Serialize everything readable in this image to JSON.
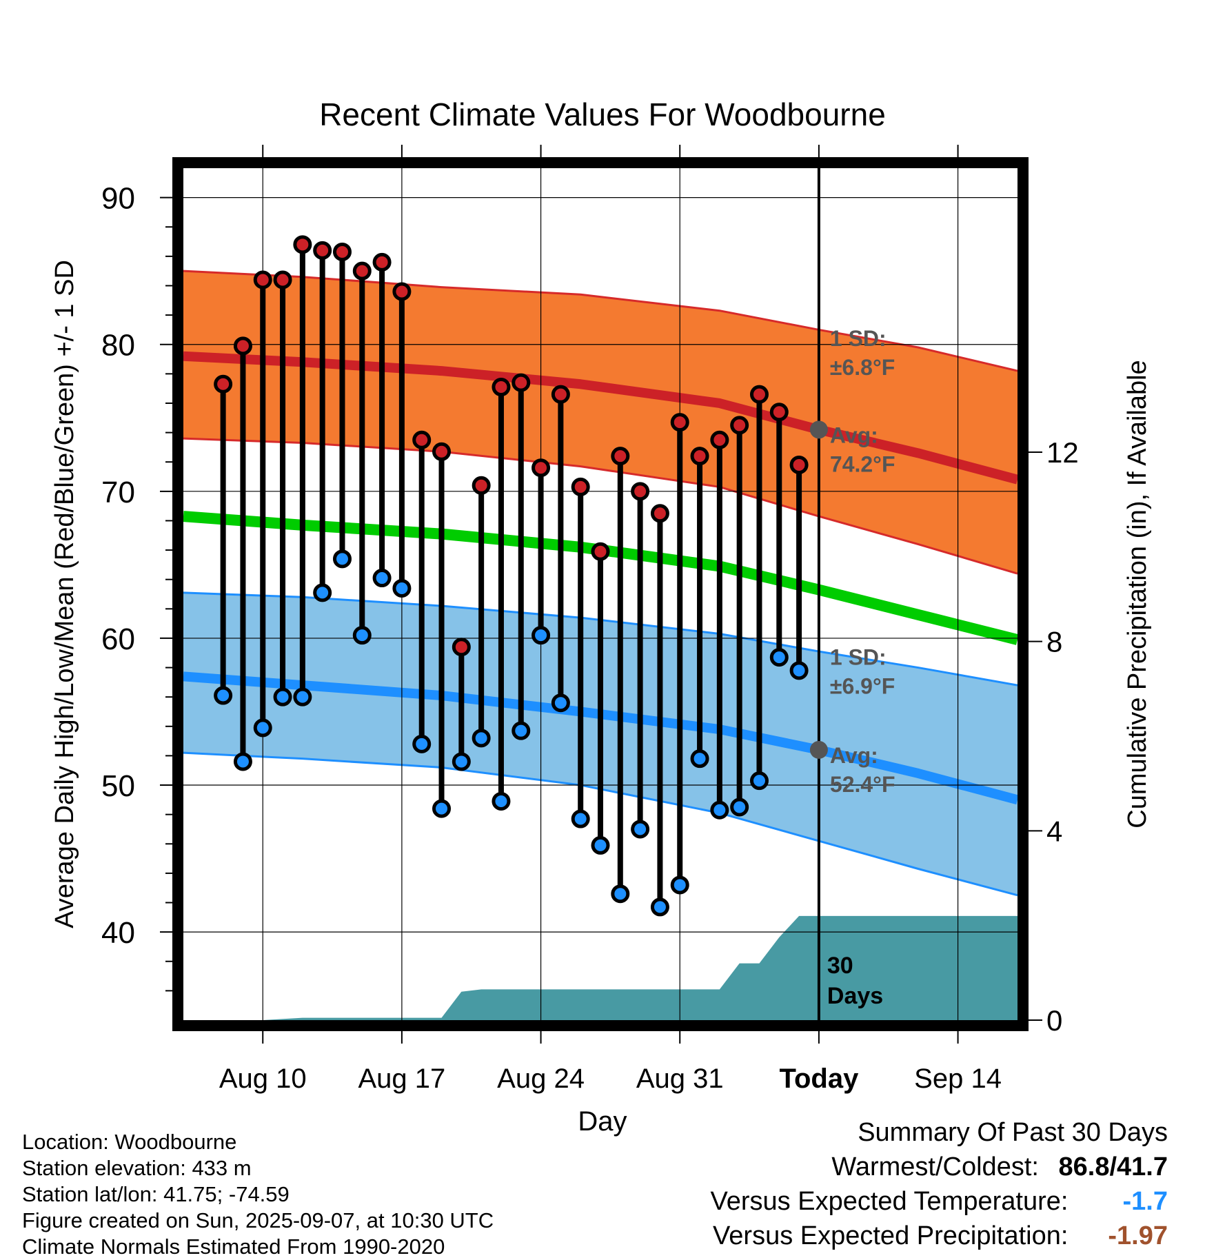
{
  "colors": {
    "high_marker": "#cc2127",
    "low_marker": "#1e90ff",
    "high_band": "#f47a30",
    "high_band_edge": "#d62a2a",
    "high_mean": "#cc2127",
    "low_band": "#86c2e8",
    "low_band_edge": "#1e8fff",
    "low_mean": "#1e8fff",
    "mean_line": "#00cc00",
    "precip_fill": "#489aa3",
    "annotation": "#555555",
    "temp_anomaly": "#1e8fff",
    "precip_anomaly": "#a0522d"
  },
  "chart_data": {
    "type": "line",
    "title": "Recent Climate Values For Woodbourne",
    "xlabel": "Day",
    "ylabel": "Average Daily High/Low/Mean (Red/Blue/Green) +/- 1 SD",
    "y2label": "Cumulative Precipitation (in), If Available",
    "ylim": [
      34,
      92
    ],
    "y2lim": [
      0,
      18
    ],
    "xlim": [
      "2025-08-06",
      "2025-09-17"
    ],
    "x_ticks": [
      {
        "date": "2025-08-10",
        "label": "Aug 10"
      },
      {
        "date": "2025-08-17",
        "label": "Aug 17"
      },
      {
        "date": "2025-08-24",
        "label": "Aug 24"
      },
      {
        "date": "2025-08-31",
        "label": "Aug 31"
      },
      {
        "date": "2025-09-07",
        "label": "Today"
      },
      {
        "date": "2025-09-14",
        "label": "Sep 14"
      }
    ],
    "y_ticks": [
      40,
      50,
      60,
      70,
      80,
      90
    ],
    "y2_ticks": [
      0,
      4,
      8,
      12
    ],
    "grid": true,
    "today": "2025-09-07",
    "dates": [
      "2025-08-08",
      "2025-08-09",
      "2025-08-10",
      "2025-08-11",
      "2025-08-12",
      "2025-08-13",
      "2025-08-14",
      "2025-08-15",
      "2025-08-16",
      "2025-08-17",
      "2025-08-18",
      "2025-08-19",
      "2025-08-20",
      "2025-08-21",
      "2025-08-22",
      "2025-08-23",
      "2025-08-24",
      "2025-08-25",
      "2025-08-26",
      "2025-08-27",
      "2025-08-28",
      "2025-08-29",
      "2025-08-30",
      "2025-08-31",
      "2025-09-01",
      "2025-09-02",
      "2025-09-03",
      "2025-09-04",
      "2025-09-05",
      "2025-09-06"
    ],
    "highs": [
      77.3,
      79.9,
      84.4,
      84.4,
      86.8,
      86.4,
      86.3,
      85.0,
      85.6,
      83.6,
      73.5,
      72.7,
      59.4,
      70.4,
      77.1,
      77.4,
      71.6,
      76.6,
      70.3,
      65.9,
      72.4,
      70.0,
      68.5,
      74.7,
      72.4,
      73.5,
      74.5,
      76.6,
      75.4,
      71.8
    ],
    "lows": [
      56.1,
      51.6,
      53.9,
      56.0,
      56.0,
      63.1,
      65.4,
      60.2,
      64.1,
      63.4,
      52.8,
      48.4,
      51.6,
      53.2,
      48.9,
      53.7,
      60.2,
      55.6,
      47.7,
      45.9,
      42.6,
      47.0,
      41.7,
      43.2,
      51.8,
      48.3,
      48.5,
      50.3,
      58.7,
      57.8
    ],
    "normals_dates": [
      "2025-08-06",
      "2025-08-12",
      "2025-08-19",
      "2025-08-26",
      "2025-09-02",
      "2025-09-07",
      "2025-09-12",
      "2025-09-17"
    ],
    "normal_high": [
      79.2,
      78.8,
      78.2,
      77.3,
      76.0,
      74.2,
      72.6,
      70.8
    ],
    "normal_high_upper": [
      85.0,
      84.6,
      83.9,
      83.4,
      82.3,
      81.0,
      79.8,
      78.2
    ],
    "normal_high_lower": [
      73.6,
      73.3,
      72.7,
      71.7,
      70.3,
      68.3,
      66.4,
      64.4
    ],
    "normal_mean": [
      68.3,
      67.7,
      67.1,
      66.2,
      64.9,
      63.3,
      61.6,
      59.9
    ],
    "normal_low": [
      57.4,
      56.8,
      56.1,
      55.0,
      53.8,
      52.4,
      50.8,
      49.0
    ],
    "normal_low_upper": [
      63.1,
      62.8,
      62.2,
      61.4,
      60.3,
      59.1,
      58.0,
      56.8
    ],
    "normal_low_lower": [
      52.2,
      51.8,
      51.2,
      50.0,
      48.1,
      46.2,
      44.3,
      42.5
    ],
    "precip_dates": [
      "2025-08-06",
      "2025-08-10",
      "2025-08-12",
      "2025-08-19",
      "2025-08-20",
      "2025-08-21",
      "2025-09-02",
      "2025-09-03",
      "2025-09-04",
      "2025-09-05",
      "2025-09-06",
      "2025-09-17"
    ],
    "precip_cum": [
      0.0,
      0.0,
      0.05,
      0.05,
      0.6,
      0.65,
      0.65,
      1.2,
      1.2,
      1.75,
      2.2,
      2.2
    ],
    "annotations": [
      {
        "label": "1 SD:",
        "value": "±6.8°F",
        "y": 79.9
      },
      {
        "label": "Avg:",
        "value": "74.2°F",
        "y": 73.3
      },
      {
        "label": "1 SD:",
        "value": "±6.9°F",
        "y": 58.2
      },
      {
        "label": "Avg:",
        "value": "52.4°F",
        "y": 51.5
      }
    ],
    "precip_label": [
      "30",
      "Days"
    ]
  },
  "info": {
    "location": "Location: Woodbourne",
    "elevation": "Station elevation: 433 m",
    "latlon": "Station lat/lon: 41.75; -74.59",
    "created": "Figure created on Sun, 2025-09-07, at 10:30 UTC",
    "normals": "Climate Normals Estimated From 1990-2020"
  },
  "summary": {
    "title": "Summary Of Past 30 Days",
    "warm_cold_label": "Warmest/Coldest:",
    "warm_cold_value": "86.8/41.7",
    "temp_label": "Versus Expected Temperature:",
    "temp_value": "-1.7",
    "precip_label": "Versus Expected Precipitation:",
    "precip_value": "-1.97"
  }
}
